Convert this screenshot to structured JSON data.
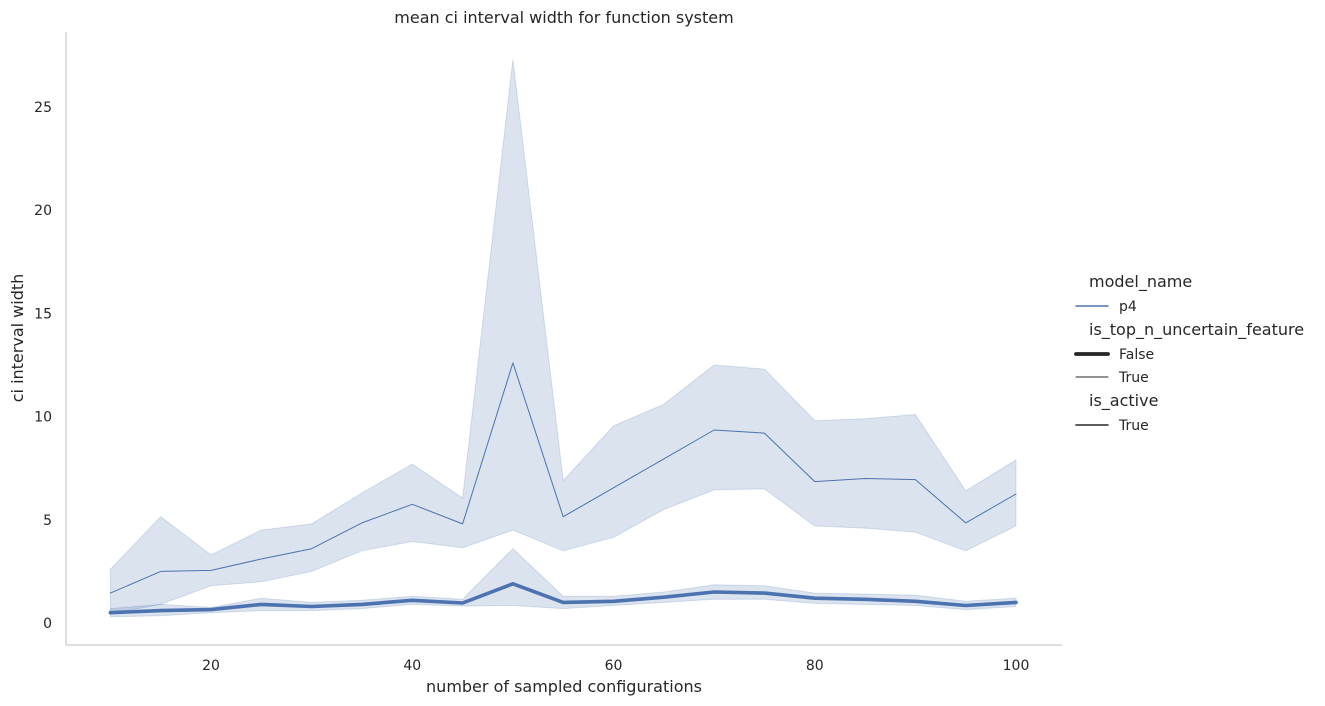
{
  "chart_data": {
    "type": "line",
    "title": "mean ci interval width for function system",
    "xlabel": "number of sampled configurations",
    "ylabel": "ci interval width",
    "xlim": [
      5,
      105
    ],
    "ylim": [
      -1.0,
      28.5
    ],
    "xticks": [
      20,
      40,
      60,
      80,
      100
    ],
    "yticks": [
      0,
      5,
      10,
      15,
      20,
      25
    ],
    "grid": false,
    "legend_placement": "right",
    "color": "#4c72b0",
    "x": [
      10,
      15,
      20,
      25,
      30,
      35,
      40,
      45,
      50,
      55,
      60,
      65,
      70,
      75,
      80,
      85,
      90,
      95,
      100
    ],
    "series": [
      {
        "name": "True",
        "line_weight": "thin",
        "values": [
          1.45,
          2.5,
          2.55,
          3.1,
          3.6,
          4.85,
          5.75,
          4.8,
          12.6,
          5.15,
          6.55,
          7.95,
          9.35,
          9.2,
          6.85,
          7.0,
          6.95,
          4.85,
          6.25
        ],
        "ci_low": [
          0.45,
          0.9,
          1.8,
          2.0,
          2.5,
          3.5,
          3.95,
          3.65,
          4.5,
          3.5,
          4.15,
          5.5,
          6.45,
          6.5,
          4.7,
          4.6,
          4.4,
          3.5,
          4.7
        ],
        "ci_high": [
          2.6,
          5.15,
          3.3,
          4.5,
          4.8,
          6.3,
          7.7,
          6.05,
          27.3,
          6.9,
          9.55,
          10.6,
          12.5,
          12.3,
          9.8,
          9.9,
          10.1,
          6.4,
          7.9
        ]
      },
      {
        "name": "False",
        "line_weight": "thick",
        "values": [
          0.5,
          0.6,
          0.65,
          0.9,
          0.8,
          0.9,
          1.1,
          0.97,
          1.9,
          1.0,
          1.05,
          1.25,
          1.5,
          1.45,
          1.2,
          1.15,
          1.05,
          0.85,
          1.0
        ],
        "ci_low": [
          0.3,
          0.35,
          0.5,
          0.6,
          0.6,
          0.7,
          0.9,
          0.82,
          0.85,
          0.7,
          0.85,
          1.0,
          1.15,
          1.15,
          0.95,
          0.9,
          0.85,
          0.65,
          0.8
        ],
        "ci_high": [
          0.7,
          0.9,
          0.75,
          1.2,
          1.0,
          1.1,
          1.3,
          1.15,
          3.6,
          1.3,
          1.3,
          1.5,
          1.85,
          1.8,
          1.45,
          1.4,
          1.35,
          1.05,
          1.2
        ]
      }
    ]
  },
  "legend": {
    "groups": [
      {
        "title": "model_name",
        "entries": [
          {
            "label": "p4",
            "style": "color"
          }
        ]
      },
      {
        "title": "is_top_n_uncertain_feature",
        "entries": [
          {
            "label": "False",
            "style": "thick"
          },
          {
            "label": "True",
            "style": "thin"
          }
        ]
      },
      {
        "title": "is_active",
        "entries": [
          {
            "label": "True",
            "style": "solid"
          }
        ]
      }
    ]
  }
}
